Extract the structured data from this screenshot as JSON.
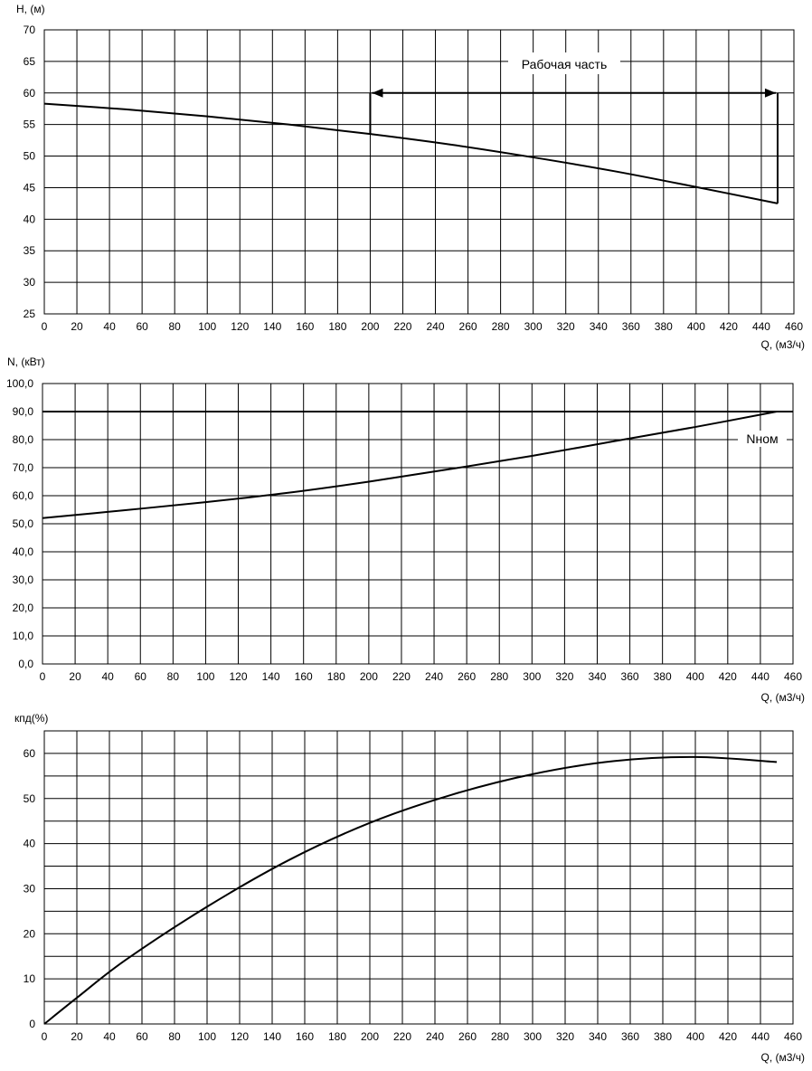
{
  "chart_data": [
    {
      "type": "line",
      "ylabel": "H, (м)",
      "xlabel": "Q, (м3/ч)",
      "xlim": [
        0,
        460
      ],
      "ylim": [
        25,
        70
      ],
      "x_ticks": [
        "0",
        "20",
        "40",
        "60",
        "80",
        "100",
        "120",
        "140",
        "160",
        "180",
        "200",
        "220",
        "240",
        "260",
        "280",
        "300",
        "320",
        "340",
        "360",
        "380",
        "400",
        "420",
        "440",
        "460"
      ],
      "y_ticks": [
        "25",
        "30",
        "35",
        "40",
        "45",
        "50",
        "55",
        "60",
        "65",
        "70"
      ],
      "grid": true,
      "series": [
        {
          "x": [
            0,
            50,
            100,
            150,
            200,
            250,
            300,
            350,
            400,
            450
          ],
          "y": [
            58.3,
            57.4,
            56.3,
            55.0,
            53.5,
            51.8,
            49.8,
            47.6,
            45.1,
            42.5
          ]
        }
      ],
      "annotations": [
        {
          "text": "Рабочая часть",
          "kind": "range-arrow",
          "x_range": [
            200,
            450
          ],
          "y": 60
        }
      ]
    },
    {
      "type": "line",
      "ylabel": "N, (кВт)",
      "xlabel": "Q, (м3/ч)",
      "xlim": [
        0,
        460
      ],
      "ylim": [
        0,
        100
      ],
      "x_ticks": [
        "0",
        "20",
        "40",
        "60",
        "80",
        "100",
        "120",
        "140",
        "160",
        "180",
        "200",
        "220",
        "240",
        "260",
        "280",
        "300",
        "320",
        "340",
        "360",
        "380",
        "400",
        "420",
        "440",
        "460"
      ],
      "y_ticks": [
        "0,0",
        "10,0",
        "20,0",
        "30,0",
        "40,0",
        "50,0",
        "60,0",
        "70,0",
        "80,0",
        "90,0",
        "100,0"
      ],
      "grid": true,
      "series": [
        {
          "x": [
            0,
            50,
            100,
            150,
            200,
            250,
            300,
            350,
            400,
            450
          ],
          "y": [
            52.0,
            54.8,
            57.7,
            61.0,
            65.0,
            69.5,
            74.2,
            79.4,
            84.5,
            90.0
          ]
        }
      ],
      "reference_line": {
        "y": 90,
        "label": "Nном"
      }
    },
    {
      "type": "line",
      "ylabel": "кпд(%)",
      "xlabel": "Q, (м3/ч)",
      "xlim": [
        0,
        460
      ],
      "ylim": [
        0,
        65
      ],
      "x_ticks": [
        "0",
        "20",
        "40",
        "60",
        "80",
        "100",
        "120",
        "140",
        "160",
        "180",
        "200",
        "220",
        "240",
        "260",
        "280",
        "300",
        "320",
        "340",
        "360",
        "380",
        "400",
        "420",
        "440",
        "460"
      ],
      "y_ticks": [
        "0",
        "10",
        "20",
        "30",
        "40",
        "50",
        "60"
      ],
      "grid": true,
      "series": [
        {
          "x": [
            0,
            20,
            50,
            100,
            150,
            200,
            250,
            300,
            350,
            400,
            450
          ],
          "y": [
            0,
            5.8,
            14.2,
            26.0,
            36.3,
            44.6,
            50.8,
            55.4,
            58.3,
            59.2,
            58.1
          ]
        }
      ]
    }
  ]
}
